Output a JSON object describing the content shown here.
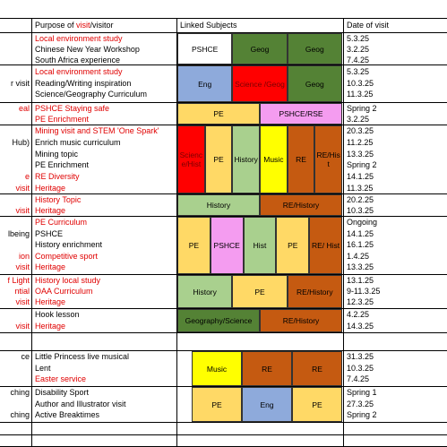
{
  "header": {
    "purpose": [
      {
        "text": "Purpose of "
      },
      {
        "text": "visit",
        "red": true
      },
      {
        "text": "/visitor"
      }
    ],
    "subjects": "Linked Subjects",
    "date": "Date of visit"
  },
  "rows": [
    {
      "lines": [
        {
          "purpose": "Local environment study",
          "red": true,
          "date": "5.3.25"
        },
        {
          "purpose": "Chinese New Year Workshop",
          "date": "3.2.25"
        },
        {
          "purpose": "South Africa experience",
          "date": "7.4.25"
        }
      ],
      "subjects": [
        {
          "label": "PSHCE",
          "color": "#ffffff"
        },
        {
          "label": "Geog",
          "color": "#548235"
        },
        {
          "label": "Geog",
          "color": "#548235"
        }
      ]
    },
    {
      "lines": [
        {
          "purpose": "Local environment study",
          "red": true,
          "date": "5.3.25"
        },
        {
          "side": "r visit",
          "purpose": "Reading/Writing inspiration",
          "date": "10.3.25"
        },
        {
          "purpose": "Science/Geography Curriculum",
          "date": "11.3.25"
        }
      ],
      "subjects": [
        {
          "label": "Eng",
          "color": "#8eaadb"
        },
        {
          "label": "Science /Geog",
          "color": "#ff0000"
        },
        {
          "label": "Geog",
          "color": "#548235"
        }
      ]
    },
    {
      "lines": [
        {
          "side": "eal",
          "purpose": "PSHCE Staying safe",
          "red": true,
          "date": "Spring 2"
        },
        {
          "purpose": "PE Enrichment",
          "red": true,
          "date": "3.2.25"
        }
      ],
      "subjects": [
        {
          "label": "PE",
          "color": "#ffd966"
        },
        {
          "label": "PSHCE/RSE",
          "color": "#f49cf0"
        }
      ]
    },
    {
      "lines": [
        {
          "purpose": "Mining visit and STEM 'One Spark'",
          "red": true,
          "date": "20.3.25"
        },
        {
          "side": "Hub)",
          "purpose": "Enrich music curriculum",
          "date": "11.2.25"
        },
        {
          "purpose": "Mining topic",
          "date": "13.3.25"
        },
        {
          "purpose": "PE Enrichment",
          "date": "Spring 2"
        },
        {
          "side": "e",
          "purpose": "RE Diversity",
          "red": true,
          "date": "14.1.25"
        },
        {
          "side": "visit",
          "purpose": "Heritage",
          "red": true,
          "date": "11.3.25"
        }
      ],
      "subjects": [
        {
          "label": "Science/Hist",
          "color": "#ff0000"
        },
        {
          "label": "PE",
          "color": "#ffd966"
        },
        {
          "label": "History",
          "color": "#a9d08e"
        },
        {
          "label": "Music",
          "color": "#ffff00"
        },
        {
          "label": "RE",
          "color": "#c55a11"
        },
        {
          "label": "RE/Hist",
          "color": "#c55a11"
        }
      ]
    },
    {
      "lines": [
        {
          "purpose": "History Topic",
          "red": true,
          "date": "20.2.25"
        },
        {
          "side": "visit",
          "purpose": "Heritage",
          "red": true,
          "date": "10.3.25"
        }
      ],
      "subjects": [
        {
          "label": "History",
          "color": "#a9d08e"
        },
        {
          "label": "RE/History",
          "color": "#c55a11"
        }
      ]
    },
    {
      "lines": [
        {
          "purpose": "PE Curriculum",
          "red": true,
          "date": "Ongoing"
        },
        {
          "side": "lbeing",
          "purpose": "PSHCE",
          "date": "14.1.25"
        },
        {
          "purpose": "History enrichment",
          "date": "16.1.25"
        },
        {
          "side": "ion",
          "purpose": "Competitive sport",
          "red": true,
          "date": "1.4.25"
        },
        {
          "side": "visit",
          "purpose": "Heritage",
          "red": true,
          "date": "13.3.25"
        }
      ],
      "subjects": [
        {
          "label": "PE",
          "color": "#ffd966"
        },
        {
          "label": "PSHCE",
          "color": "#f49cf0"
        },
        {
          "label": "Hist",
          "color": "#a9d08e"
        },
        {
          "label": "PE",
          "color": "#ffd966"
        },
        {
          "label": "RE/ Hist",
          "color": "#c55a11"
        }
      ]
    },
    {
      "lines": [
        {
          "side": "f Light",
          "purpose": "History local study",
          "red": true,
          "date": "13.1.25"
        },
        {
          "side": "ntial",
          "purpose": "OAA Curriculum",
          "red": true,
          "date": "9-11.3.25"
        },
        {
          "side": "visit",
          "purpose": "Heritage",
          "red": true,
          "date": "12.3.25"
        }
      ],
      "subjects": [
        {
          "label": "History",
          "color": "#a9d08e"
        },
        {
          "label": "PE",
          "color": "#ffd966"
        },
        {
          "label": "RE/History",
          "color": "#c55a11"
        }
      ]
    },
    {
      "lines": [
        {
          "purpose": "Hook lesson",
          "date": "4.2.25"
        },
        {
          "side": "visit",
          "purpose": "Heritage",
          "red": true,
          "date": "14.3.25"
        }
      ],
      "subjects": [
        {
          "label": "Geography/Science",
          "color": "#548235"
        },
        {
          "label": "RE/History",
          "color": "#c55a11"
        }
      ]
    },
    {
      "lines": [
        {
          "side": "ce",
          "purpose": "Little Princess live musical",
          "date": "31.3.25"
        },
        {
          "purpose": "Lent",
          "date": "10.3.25"
        },
        {
          "purpose": "Easter service",
          "red": true,
          "date": "7.4.25"
        }
      ],
      "subjects": [
        {
          "label": "Music",
          "color": "#ffff00"
        },
        {
          "label": "RE",
          "color": "#c55a11"
        },
        {
          "label": "RE",
          "color": "#c55a11"
        }
      ]
    },
    {
      "lines": [
        {
          "side": "ching",
          "purpose": "Disability Sport",
          "date": "Spring 1"
        },
        {
          "purpose": "Author and Illustrator visit",
          "date": "27.3.25"
        },
        {
          "side": "ching",
          "purpose": "Active Breaktimes",
          "date": "Spring 2"
        }
      ],
      "subjects": [
        {
          "label": "PE",
          "color": "#ffd966"
        },
        {
          "label": "Eng",
          "color": "#8eaadb"
        },
        {
          "label": "PE",
          "color": "#ffd966"
        }
      ]
    }
  ]
}
